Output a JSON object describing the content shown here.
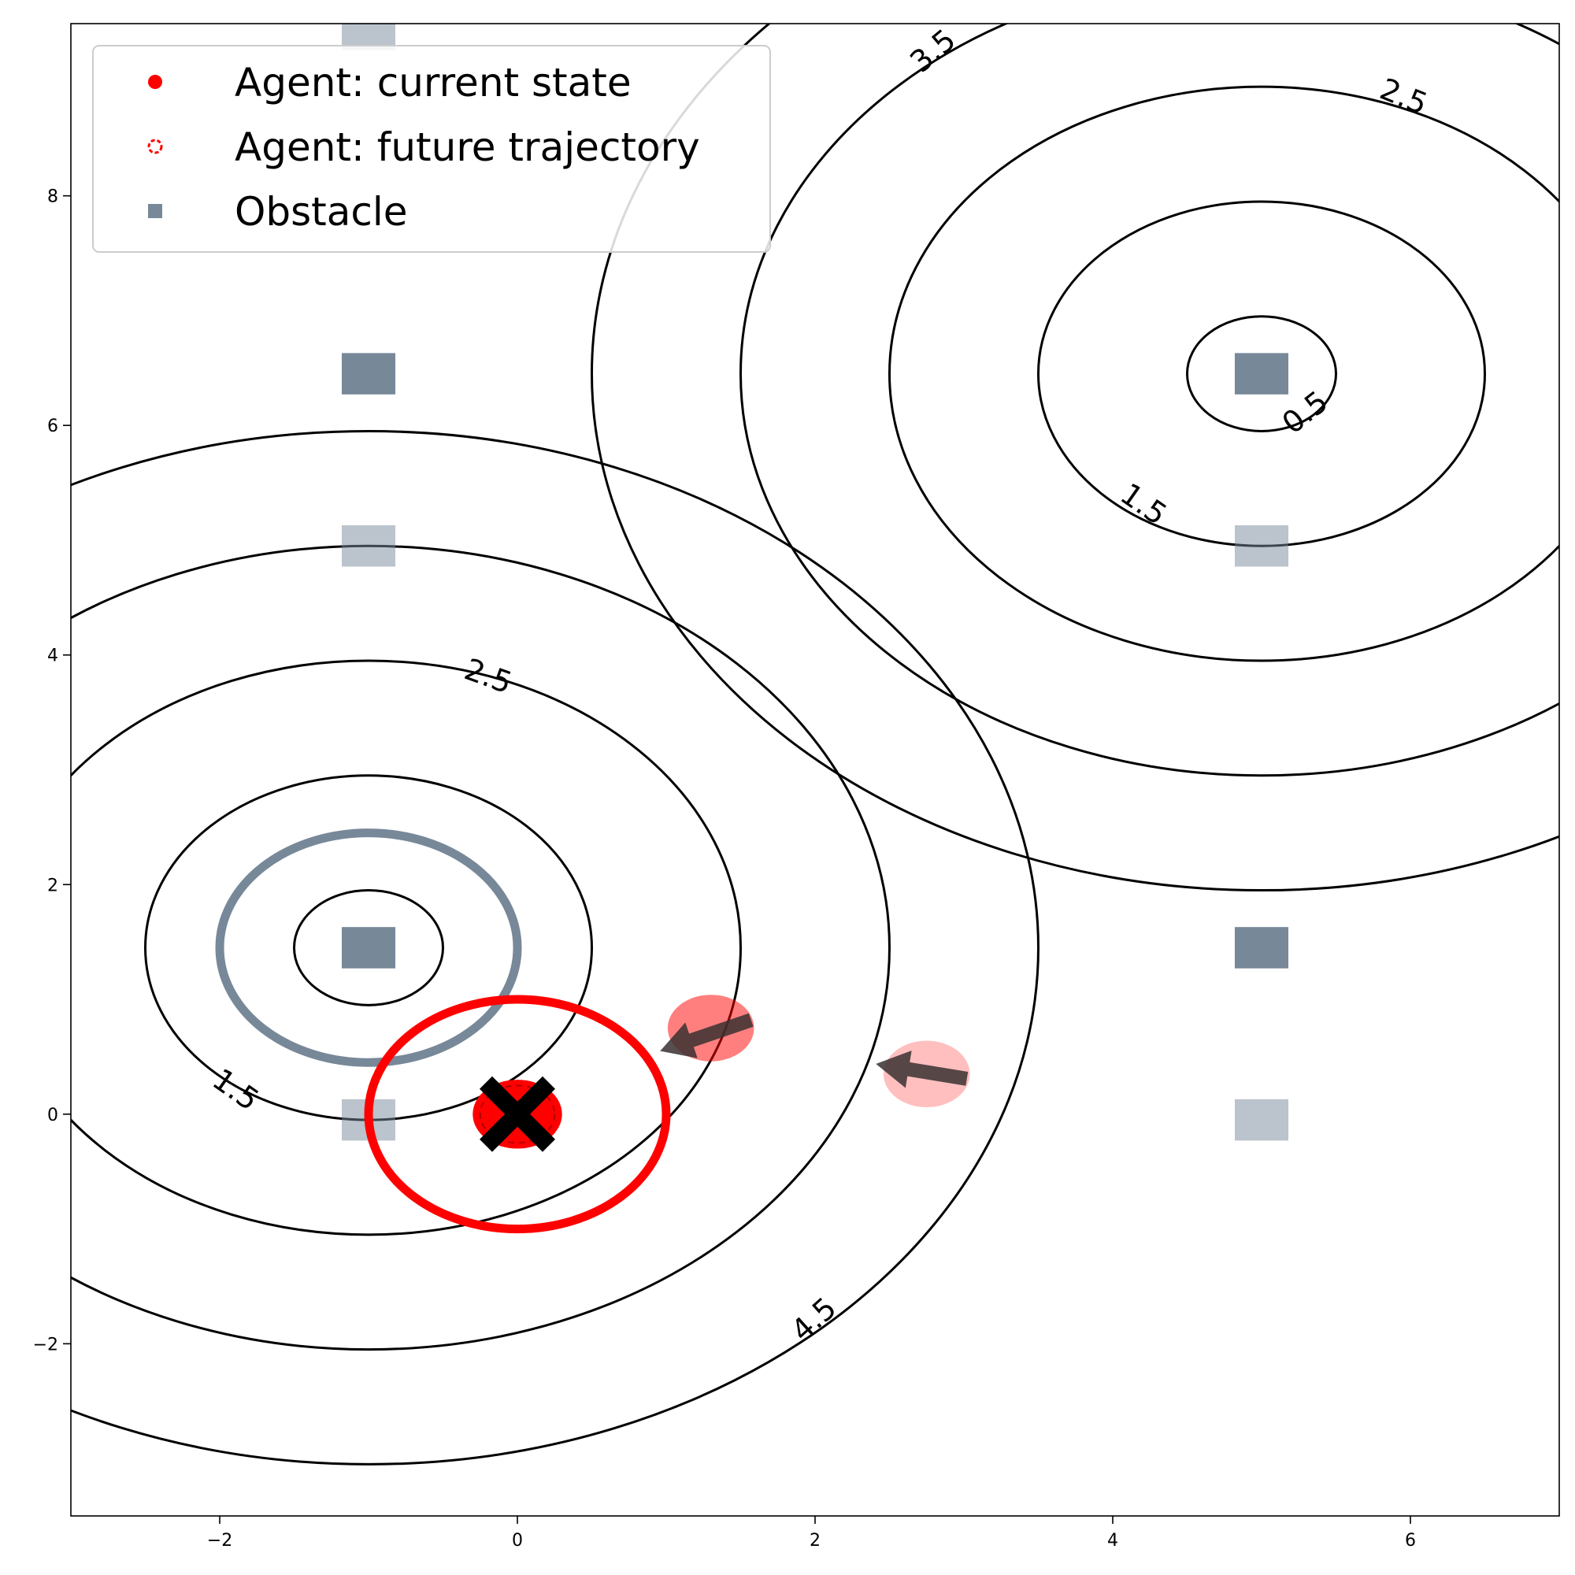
{
  "chart_data": {
    "type": "scatter",
    "title": "",
    "xlabel": "",
    "ylabel": "",
    "xlim": [
      -3,
      7
    ],
    "ylim": [
      -3.5,
      9.5
    ],
    "x_ticks": [
      {
        "value": -2,
        "label": "−2"
      },
      {
        "value": 0,
        "label": "0"
      },
      {
        "value": 2,
        "label": "2"
      },
      {
        "value": 4,
        "label": "4"
      },
      {
        "value": 6,
        "label": "6"
      }
    ],
    "y_ticks": [
      {
        "value": -2,
        "label": "−2"
      },
      {
        "value": 0,
        "label": "0"
      },
      {
        "value": 2,
        "label": "2"
      },
      {
        "value": 4,
        "label": "4"
      },
      {
        "value": 6,
        "label": "6"
      },
      {
        "value": 8,
        "label": "8"
      }
    ],
    "legend": {
      "placement": "top-left",
      "entries": [
        {
          "label": "Agent: current state",
          "marker": "filled-circle",
          "color": "#ff0000"
        },
        {
          "label": "Agent: future trajectory",
          "marker": "dashed-circle",
          "color": "#ff0000"
        },
        {
          "label": "Obstacle",
          "marker": "square",
          "color": "#778899"
        }
      ]
    },
    "agent": {
      "current": {
        "x": 0.0,
        "y": 0.0,
        "color": "#ff0000"
      },
      "goal_marker": {
        "x": 0.0,
        "y": 0.0,
        "shape": "X",
        "color": "#000000"
      },
      "safety_ring": {
        "x": 0.0,
        "y": 0.0,
        "r": 1.0,
        "color": "#ff0000"
      }
    },
    "obstacle_ring": {
      "x": -1.0,
      "y": 1.45,
      "r": 1.0,
      "color": "#778899"
    },
    "obstacles": [
      {
        "x": -1.0,
        "y": 9.45,
        "alpha": 0.5
      },
      {
        "x": -1.0,
        "y": 6.45,
        "alpha": 1.0
      },
      {
        "x": -1.0,
        "y": 4.95,
        "alpha": 0.5
      },
      {
        "x": -1.0,
        "y": 1.45,
        "alpha": 1.0
      },
      {
        "x": -1.0,
        "y": -0.05,
        "alpha": 0.5
      },
      {
        "x": 5.0,
        "y": 6.45,
        "alpha": 1.0
      },
      {
        "x": 5.0,
        "y": 4.95,
        "alpha": 0.5
      },
      {
        "x": 5.0,
        "y": 1.45,
        "alpha": 1.0
      },
      {
        "x": 5.0,
        "y": -0.05,
        "alpha": 0.5
      }
    ],
    "moving_agents": [
      {
        "x": 1.3,
        "y": 0.75,
        "alpha": 0.5,
        "arrow_dx": -0.55,
        "arrow_dy": -0.2
      },
      {
        "x": 2.75,
        "y": 0.35,
        "alpha": 0.25,
        "arrow_dx": -0.55,
        "arrow_dy": 0.12
      }
    ],
    "contour_groups": [
      {
        "center": {
          "x": -1.0,
          "y": 1.45
        },
        "radii": [
          0.5,
          1.5,
          2.5,
          3.5,
          4.5
        ]
      },
      {
        "center": {
          "x": 5.0,
          "y": 6.45
        },
        "radii": [
          0.5,
          1.5,
          2.5,
          3.5,
          4.5
        ]
      }
    ],
    "contour_labels": [
      {
        "text": "1.5",
        "x": -1.9,
        "y": 0.2,
        "rotation": 35
      },
      {
        "text": "2.5",
        "x": -0.2,
        "y": 3.8,
        "rotation": 20
      },
      {
        "text": "4.5",
        "x": 2.0,
        "y": -1.8,
        "rotation": -42
      },
      {
        "text": "3.5",
        "x": 2.8,
        "y": 9.25,
        "rotation": -40
      },
      {
        "text": "2.5",
        "x": 5.95,
        "y": 8.85,
        "rotation": 22
      },
      {
        "text": "1.5",
        "x": 4.2,
        "y": 5.3,
        "rotation": 35
      },
      {
        "text": "0.5",
        "x": 5.3,
        "y": 6.1,
        "rotation": -38
      }
    ]
  }
}
